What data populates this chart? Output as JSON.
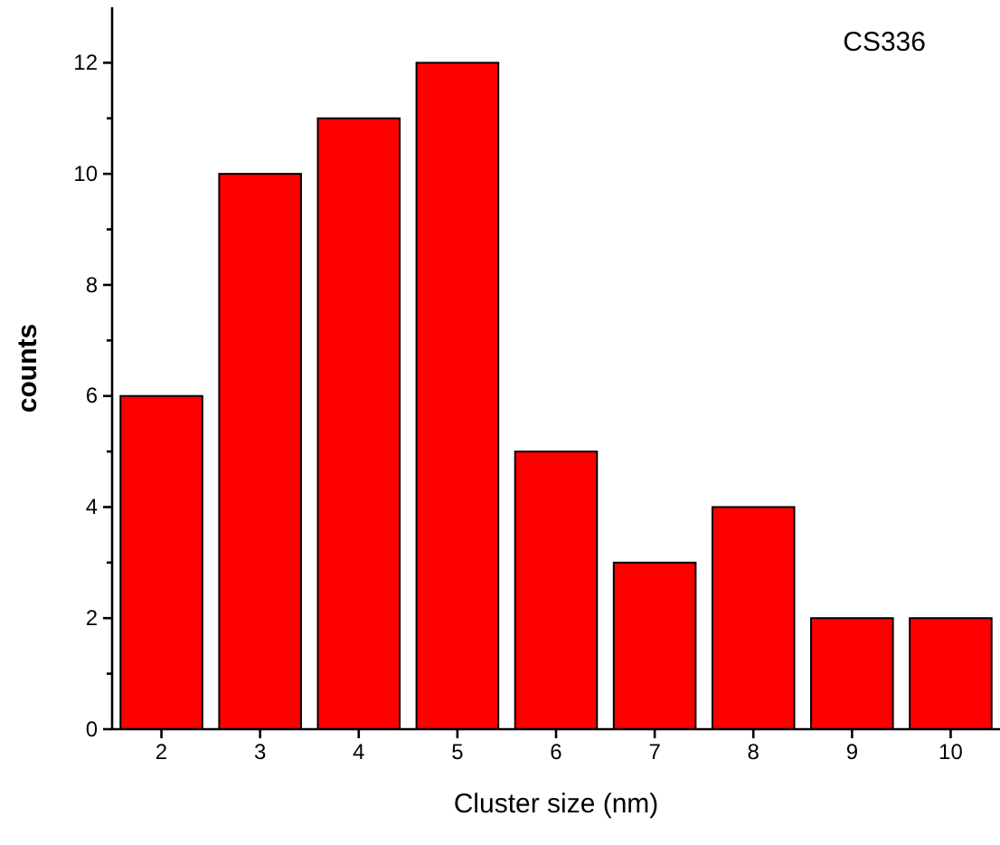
{
  "chart_data": {
    "type": "bar",
    "categories": [
      "2",
      "3",
      "4",
      "5",
      "6",
      "7",
      "8",
      "9",
      "10"
    ],
    "values": [
      6,
      10,
      11,
      12,
      5,
      3,
      4,
      2,
      2
    ],
    "color": "#ff0000",
    "xlabel": "Cluster size (nm)",
    "ylabel": "counts",
    "ylim": [
      0,
      13
    ],
    "yticks": [
      0,
      {
        "value": 1,
        "label": null
      },
      2,
      {
        "value": 3,
        "label": null
      },
      4,
      {
        "value": 5,
        "label": null
      },
      6,
      {
        "value": 7,
        "label": null
      },
      8,
      {
        "value": 9,
        "label": null
      },
      10,
      {
        "value": 11,
        "label": null
      },
      12
    ],
    "annotations": [
      "CS336"
    ]
  }
}
